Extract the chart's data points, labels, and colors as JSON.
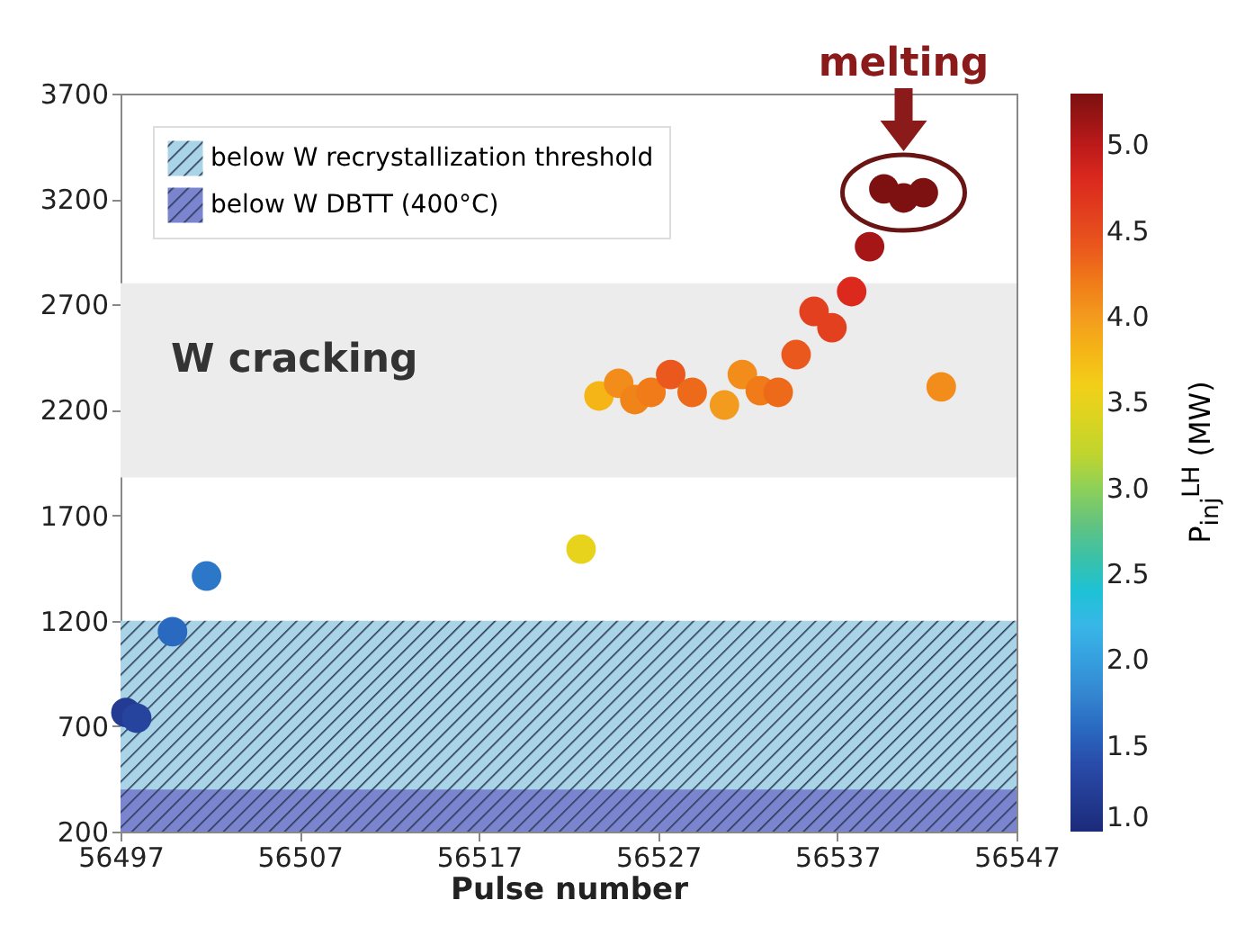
{
  "chart_data": {
    "type": "scatter",
    "xlabel": "Pulse number",
    "clabel": "P$_{inj}$$^{LH}$ (MW)",
    "x": [
      56497.3,
      56497.9,
      56499.9,
      56501.8,
      56522.7,
      56523.7,
      56524.8,
      56525.7,
      56526.6,
      56527.7,
      56528.9,
      56530.7,
      56531.7,
      56532.7,
      56533.7,
      56534.7,
      56535.7,
      56536.7,
      56537.8,
      56538.8,
      56539.6,
      56540.7,
      56541.8,
      56542.8
    ],
    "values": [
      765,
      738,
      1148,
      1412,
      1540,
      2266,
      2326,
      2249,
      2283,
      2368,
      2283,
      2223,
      2368,
      2291,
      2283,
      2462,
      2667,
      2590,
      2761,
      2974,
      3248,
      3205,
      3230,
      2309
    ],
    "cvalues": [
      1.2,
      1.3,
      1.6,
      1.7,
      3.5,
      3.8,
      4.1,
      4.15,
      4.2,
      4.4,
      4.3,
      4.0,
      4.1,
      4.2,
      4.3,
      4.4,
      4.6,
      4.6,
      4.8,
      5.1,
      5.3,
      5.3,
      5.3,
      4.1
    ],
    "xlim": [
      56497,
      56547
    ],
    "xticks": [
      56497,
      56507,
      56517,
      56527,
      56537,
      56547
    ],
    "ylim": [
      200,
      3700
    ],
    "yticks": [
      200,
      700,
      1200,
      1700,
      2200,
      2700,
      3200,
      3700
    ],
    "clim": [
      1,
      5.3
    ],
    "cticks": [
      {
        "value": 1,
        "label": "1.0"
      },
      {
        "value": 1.5,
        "label": "1.5"
      },
      {
        "value": 2,
        "label": "2.0"
      },
      {
        "value": 2.5,
        "label": "2.5"
      },
      {
        "value": 3,
        "label": "3.0"
      },
      {
        "value": 3.5,
        "label": "3.5"
      },
      {
        "value": 4,
        "label": "4.0"
      },
      {
        "value": 4.5,
        "label": "4.5"
      },
      {
        "value": 5,
        "label": "5.0"
      }
    ],
    "bands": [
      {
        "axis": "y",
        "from": 1880,
        "to": 2800,
        "color": "#ececec"
      },
      {
        "axis": "y",
        "from": 200,
        "to": 1200,
        "label": "below W recrystallization threshold",
        "color": "#a9d3e6"
      },
      {
        "axis": "y",
        "from": 200,
        "to": 400,
        "label": "below W DBTT (400°C)",
        "color": "#7b84cf"
      }
    ],
    "annotations": [
      "W cracking",
      {
        "text": "melting",
        "x": 56540.7,
        "y": 3230
      }
    ],
    "legend": "top left",
    "grid": false,
    "marker": "circle"
  }
}
